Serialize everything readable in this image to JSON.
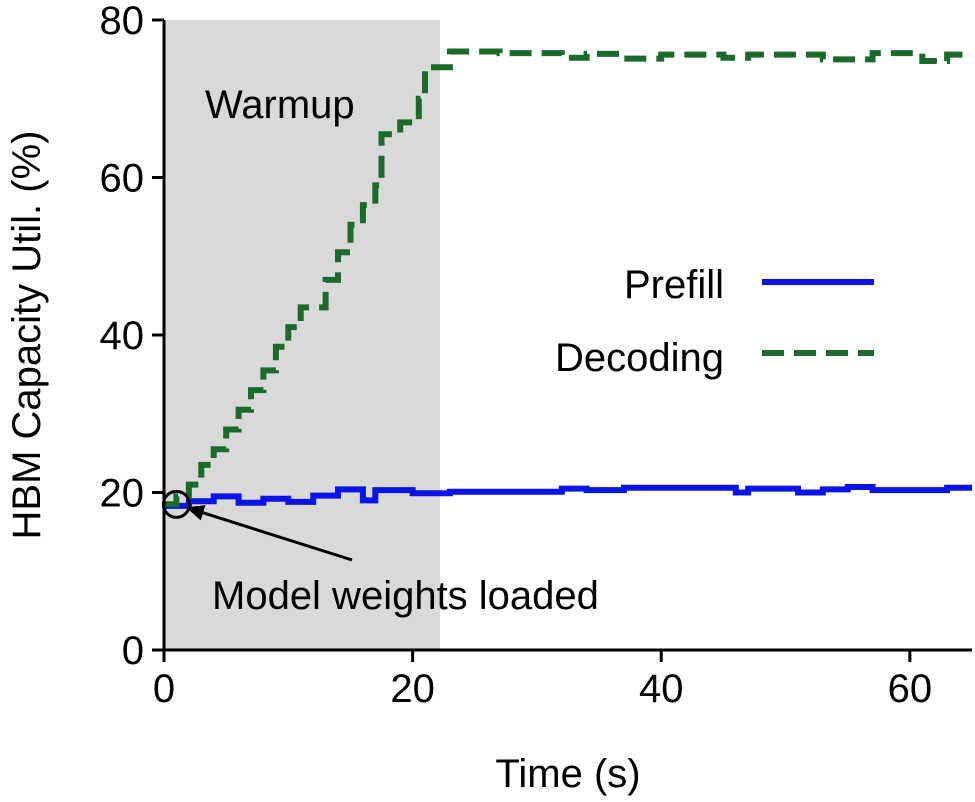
{
  "chart_data": {
    "type": "line",
    "xlabel": "Time (s)",
    "ylabel": "HBM Capacity Util. (%)",
    "xlim": [
      0,
      65
    ],
    "ylim": [
      0,
      80
    ],
    "xticks": [
      0,
      20,
      40,
      60
    ],
    "yticks": [
      0,
      20,
      40,
      60,
      80
    ],
    "grid": false,
    "legend_position": "right",
    "shaded_region": {
      "label": "Warmup",
      "x_range": [
        0,
        22.2
      ],
      "color": "#d9d9d9"
    },
    "annotation": {
      "text": "Model weights loaded",
      "x": 1,
      "y": 18.5
    },
    "series": [
      {
        "name": "Prefill",
        "color": "#0a14e6",
        "style": "solid",
        "points": [
          [
            0,
            18.3
          ],
          [
            2,
            18.3
          ],
          [
            2,
            18.9
          ],
          [
            4,
            18.9
          ],
          [
            4,
            19.5
          ],
          [
            6,
            19.5
          ],
          [
            6,
            18.7
          ],
          [
            8,
            18.7
          ],
          [
            8,
            19.2
          ],
          [
            10,
            19.2
          ],
          [
            10,
            18.8
          ],
          [
            12,
            18.8
          ],
          [
            12,
            19.6
          ],
          [
            14,
            19.6
          ],
          [
            14,
            20.4
          ],
          [
            16,
            20.4
          ],
          [
            16,
            19.0
          ],
          [
            17,
            19.0
          ],
          [
            17,
            20.3
          ],
          [
            20,
            20.3
          ],
          [
            20,
            19.9
          ],
          [
            23,
            19.9
          ],
          [
            23,
            20.1
          ],
          [
            32,
            20.1
          ],
          [
            32,
            20.5
          ],
          [
            34,
            20.5
          ],
          [
            34,
            20.3
          ],
          [
            37,
            20.3
          ],
          [
            37,
            20.6
          ],
          [
            46,
            20.6
          ],
          [
            46,
            20.0
          ],
          [
            47,
            20.0
          ],
          [
            47,
            20.5
          ],
          [
            51,
            20.5
          ],
          [
            51,
            20.0
          ],
          [
            53,
            20.0
          ],
          [
            53,
            20.4
          ],
          [
            55,
            20.4
          ],
          [
            55,
            20.7
          ],
          [
            57,
            20.7
          ],
          [
            57,
            20.3
          ],
          [
            63,
            20.3
          ],
          [
            63,
            20.6
          ],
          [
            65,
            20.6
          ]
        ]
      },
      {
        "name": "Decoding",
        "color": "#1a6b2a",
        "style": "dashed",
        "points": [
          [
            0,
            18.5
          ],
          [
            1,
            18.5
          ],
          [
            1,
            19.5
          ],
          [
            2,
            19.5
          ],
          [
            2,
            21.0
          ],
          [
            3,
            21.0
          ],
          [
            3,
            23.5
          ],
          [
            4,
            23.5
          ],
          [
            4,
            25.5
          ],
          [
            5,
            25.5
          ],
          [
            5,
            28.0
          ],
          [
            6,
            28.0
          ],
          [
            6,
            30.5
          ],
          [
            7,
            30.5
          ],
          [
            7,
            33.0
          ],
          [
            8,
            33.0
          ],
          [
            8,
            35.5
          ],
          [
            9,
            35.5
          ],
          [
            9,
            38.5
          ],
          [
            10,
            38.5
          ],
          [
            10,
            41.0
          ],
          [
            11,
            41.0
          ],
          [
            11,
            43.5
          ],
          [
            13,
            43.5
          ],
          [
            13,
            47.0
          ],
          [
            14,
            47.0
          ],
          [
            14,
            50.5
          ],
          [
            15,
            50.5
          ],
          [
            15,
            54.0
          ],
          [
            16,
            54.0
          ],
          [
            16,
            56.5
          ],
          [
            17,
            56.5
          ],
          [
            17,
            59.0
          ],
          [
            17.5,
            59.0
          ],
          [
            17.5,
            65.5
          ],
          [
            19,
            65.5
          ],
          [
            19,
            67.0
          ],
          [
            20.5,
            67.0
          ],
          [
            20.5,
            70.0
          ],
          [
            21,
            70.0
          ],
          [
            21,
            74.0
          ],
          [
            23,
            74.0
          ],
          [
            23,
            76.0
          ],
          [
            27,
            76.0
          ],
          [
            27,
            75.8
          ],
          [
            32,
            75.8
          ],
          [
            32,
            75.2
          ],
          [
            34,
            75.2
          ],
          [
            34,
            75.7
          ],
          [
            37,
            75.7
          ],
          [
            37,
            75.1
          ],
          [
            40,
            75.1
          ],
          [
            40,
            75.6
          ],
          [
            45,
            75.6
          ],
          [
            45,
            75.2
          ],
          [
            47,
            75.2
          ],
          [
            47,
            75.6
          ],
          [
            53,
            75.6
          ],
          [
            53,
            75.0
          ],
          [
            57,
            75.0
          ],
          [
            57,
            75.8
          ],
          [
            61,
            75.8
          ],
          [
            61,
            74.8
          ],
          [
            63,
            74.8
          ],
          [
            63,
            75.6
          ],
          [
            65,
            75.6
          ]
        ]
      }
    ]
  }
}
